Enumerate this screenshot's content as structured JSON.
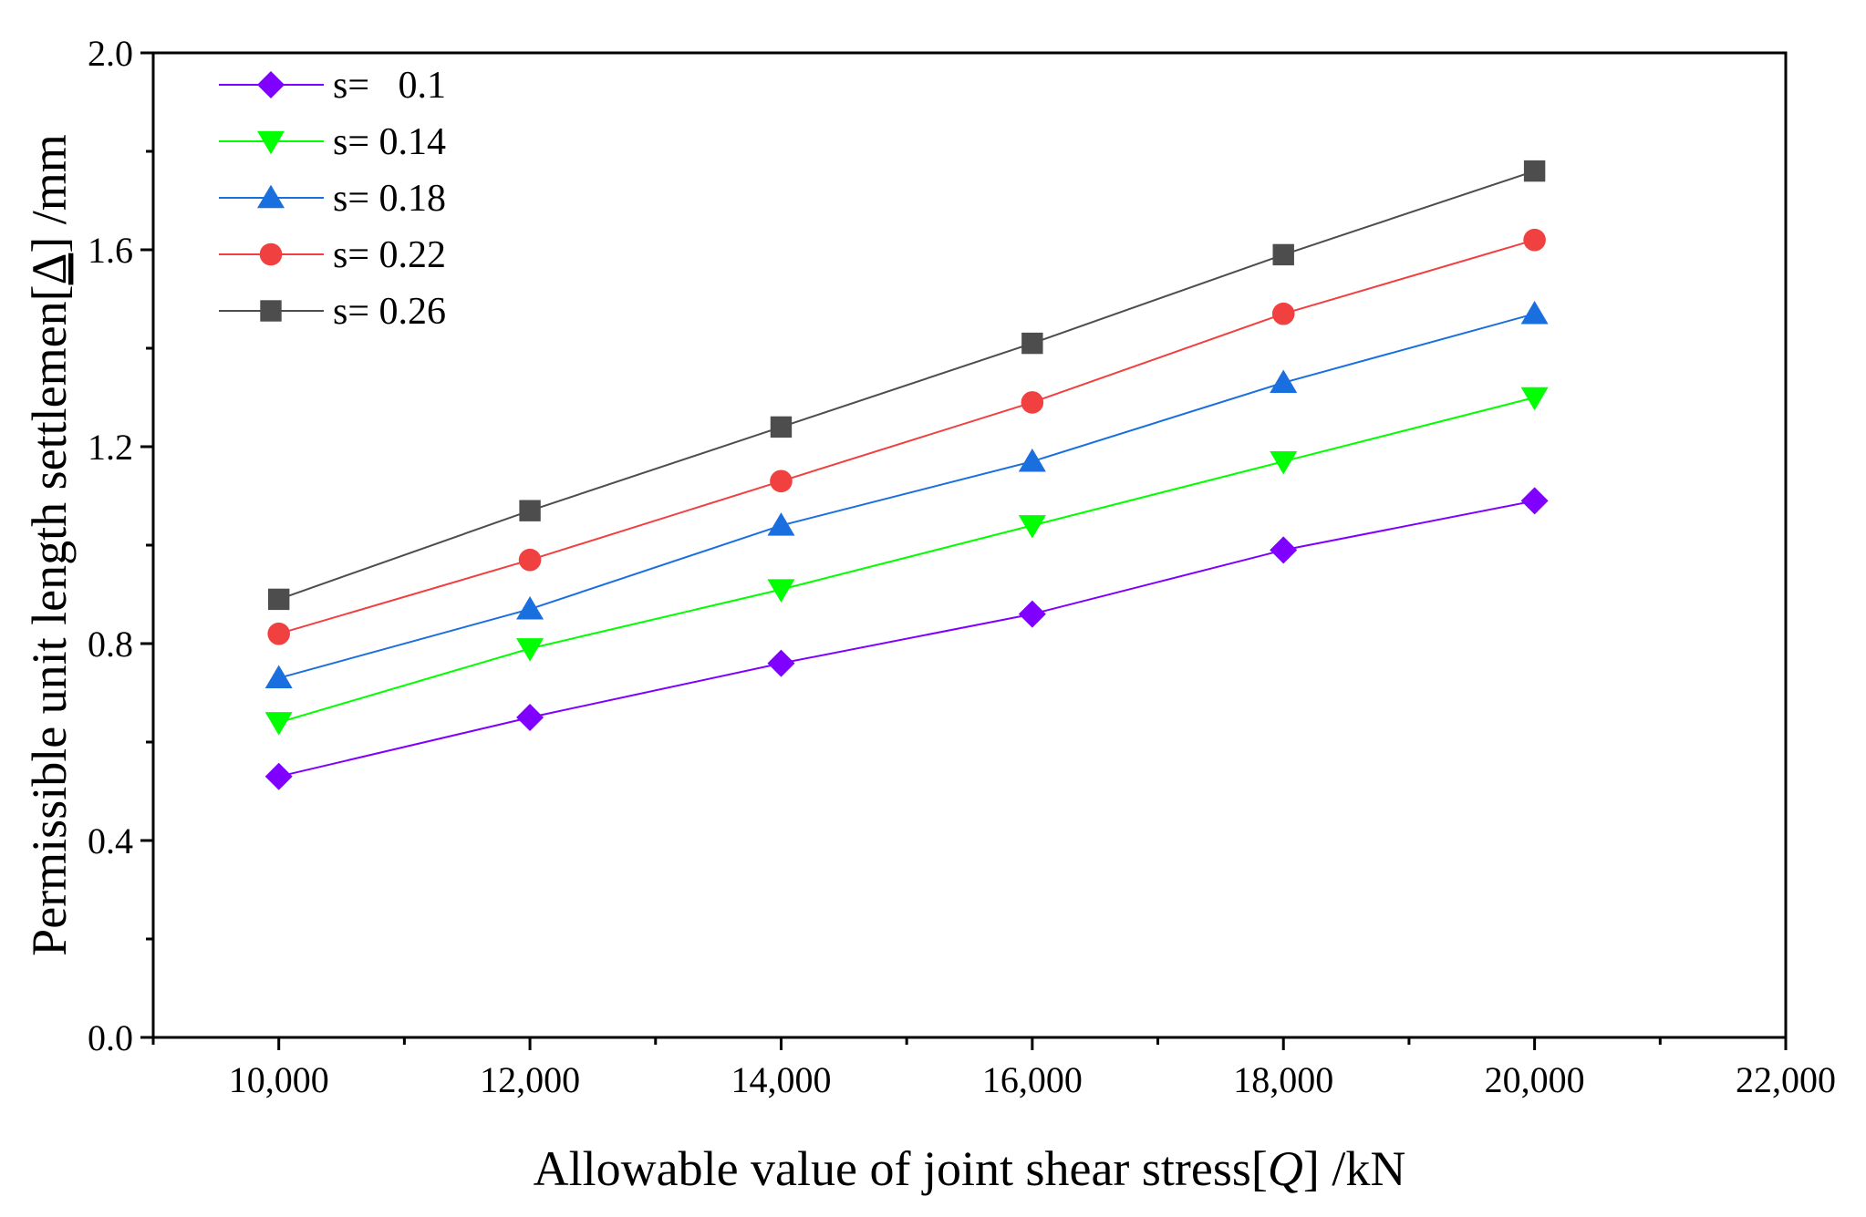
{
  "chart_data": {
    "type": "line",
    "title": "",
    "xlabel": "Allowable value of joint shear stress[Q] /kN",
    "xlabel_parts": {
      "pre": "Allowable value of joint shear stress[",
      "italic": "Q",
      "post": "] /kN"
    },
    "ylabel": "Permissible unit length settlemen[Δ] /mm",
    "ylabel_parts": {
      "pre": "Permissible unit length settlemen[",
      "underlined": "Δ",
      "post": "] /mm"
    },
    "xlim": [
      9000,
      22000
    ],
    "ylim": [
      0.0,
      2.0
    ],
    "x_ticks": [
      10000,
      12000,
      14000,
      16000,
      18000,
      20000,
      22000
    ],
    "x_tick_labels": [
      "10,000",
      "12,000",
      "14,000",
      "16,000",
      "18,000",
      "20,000",
      "22,000"
    ],
    "y_ticks": [
      0.0,
      0.4,
      0.8,
      1.2,
      1.6,
      2.0
    ],
    "y_tick_labels": [
      "0.0",
      "0.4",
      "0.8",
      "1.2",
      "1.6",
      "2.0"
    ],
    "grid": false,
    "legend_position": "top-left",
    "x": [
      10000,
      12000,
      14000,
      16000,
      18000,
      20000
    ],
    "series": [
      {
        "name": "s=   0.1",
        "marker": "diamond",
        "color": "#8000ff",
        "values": [
          0.53,
          0.65,
          0.76,
          0.86,
          0.99,
          1.09
        ]
      },
      {
        "name": "s= 0.14",
        "marker": "triangle-down",
        "color": "#00ff00",
        "values": [
          0.64,
          0.79,
          0.91,
          1.04,
          1.17,
          1.3
        ]
      },
      {
        "name": "s= 0.18",
        "marker": "triangle-up",
        "color": "#1a6fdf",
        "values": [
          0.73,
          0.87,
          1.04,
          1.17,
          1.33,
          1.47
        ]
      },
      {
        "name": "s= 0.22",
        "marker": "circle",
        "color": "#f14040",
        "values": [
          0.82,
          0.97,
          1.13,
          1.29,
          1.47,
          1.62
        ]
      },
      {
        "name": "s= 0.26",
        "marker": "square",
        "color": "#4d4d4d",
        "values": [
          0.89,
          1.07,
          1.24,
          1.41,
          1.59,
          1.76
        ]
      }
    ]
  }
}
